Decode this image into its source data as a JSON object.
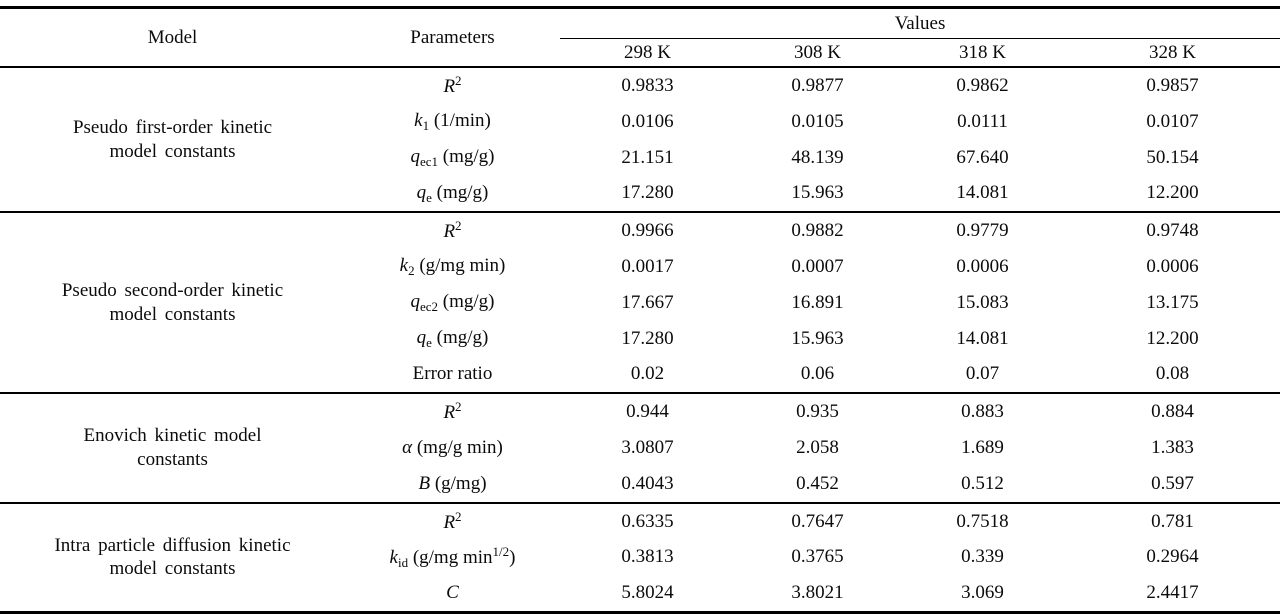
{
  "header": {
    "model": "Model",
    "parameters": "Parameters",
    "values": "Values",
    "temps": [
      "298 K",
      "308 K",
      "318 K",
      "328 K"
    ]
  },
  "sections": [
    {
      "model_lines": [
        "Pseudo first-order kinetic",
        "model constants"
      ],
      "rows": [
        {
          "param": [
            {
              "t": "R",
              "s": "i"
            },
            {
              "t": "2",
              "s": "sup"
            }
          ],
          "values": [
            "0.9833",
            "0.9877",
            "0.9862",
            "0.9857"
          ]
        },
        {
          "param": [
            {
              "t": "k",
              "s": "i"
            },
            {
              "t": "1",
              "s": "sub"
            },
            {
              "t": " (1/min)",
              "s": ""
            }
          ],
          "values": [
            "0.0106",
            "0.0105",
            "0.0111",
            "0.0107"
          ]
        },
        {
          "param": [
            {
              "t": "q",
              "s": "i"
            },
            {
              "t": "ec1",
              "s": "sub"
            },
            {
              "t": " (mg/g)",
              "s": ""
            }
          ],
          "values": [
            "21.151",
            "48.139",
            "67.640",
            "50.154"
          ]
        },
        {
          "param": [
            {
              "t": "q",
              "s": "i"
            },
            {
              "t": "e",
              "s": "sub"
            },
            {
              "t": " (mg/g)",
              "s": ""
            }
          ],
          "values": [
            "17.280",
            "15.963",
            "14.081",
            "12.200"
          ]
        }
      ]
    },
    {
      "model_lines": [
        "Pseudo second-order kinetic",
        "model constants"
      ],
      "rows": [
        {
          "param": [
            {
              "t": "R",
              "s": "i"
            },
            {
              "t": "2",
              "s": "sup"
            }
          ],
          "values": [
            "0.9966",
            "0.9882",
            "0.9779",
            "0.9748"
          ]
        },
        {
          "param": [
            {
              "t": "k",
              "s": "i"
            },
            {
              "t": "2",
              "s": "sub"
            },
            {
              "t": " (g/mg min)",
              "s": ""
            }
          ],
          "values": [
            "0.0017",
            "0.0007",
            "0.0006",
            "0.0006"
          ]
        },
        {
          "param": [
            {
              "t": "q",
              "s": "i"
            },
            {
              "t": "ec2",
              "s": "sub"
            },
            {
              "t": " (mg/g)",
              "s": ""
            }
          ],
          "values": [
            "17.667",
            "16.891",
            "15.083",
            "13.175"
          ]
        },
        {
          "param": [
            {
              "t": "q",
              "s": "i"
            },
            {
              "t": "e",
              "s": "sub"
            },
            {
              "t": " (mg/g)",
              "s": ""
            }
          ],
          "values": [
            "17.280",
            "15.963",
            "14.081",
            "12.200"
          ]
        },
        {
          "param": [
            {
              "t": "Error ratio",
              "s": ""
            }
          ],
          "values": [
            "0.02",
            "0.06",
            "0.07",
            "0.08"
          ]
        }
      ]
    },
    {
      "model_lines": [
        "Enovich kinetic model",
        "constants"
      ],
      "rows": [
        {
          "param": [
            {
              "t": "R",
              "s": "i"
            },
            {
              "t": "2",
              "s": "sup"
            }
          ],
          "values": [
            "0.944",
            "0.935",
            "0.883",
            "0.884"
          ]
        },
        {
          "param": [
            {
              "t": "α",
              "s": "i"
            },
            {
              "t": " (mg/g min)",
              "s": ""
            }
          ],
          "values": [
            "3.0807",
            "2.058",
            "1.689",
            "1.383"
          ]
        },
        {
          "param": [
            {
              "t": "B",
              "s": "i"
            },
            {
              "t": " (g/mg)",
              "s": ""
            }
          ],
          "values": [
            "0.4043",
            "0.452",
            "0.512",
            "0.597"
          ]
        }
      ]
    },
    {
      "model_lines": [
        "Intra particle diffusion kinetic",
        "model constants"
      ],
      "rows": [
        {
          "param": [
            {
              "t": "R",
              "s": "i"
            },
            {
              "t": "2",
              "s": "sup"
            }
          ],
          "values": [
            "0.6335",
            "0.7647",
            "0.7518",
            "0.781"
          ]
        },
        {
          "param": [
            {
              "t": "k",
              "s": "i"
            },
            {
              "t": "id",
              "s": "sub"
            },
            {
              "t": " (g/mg min",
              "s": ""
            },
            {
              "t": "1/2",
              "s": "sup"
            },
            {
              "t": ")",
              "s": ""
            }
          ],
          "values": [
            "0.3813",
            "0.3765",
            "0.339",
            "0.2964"
          ]
        },
        {
          "param": [
            {
              "t": "C",
              "s": "i"
            }
          ],
          "values": [
            "5.8024",
            "3.8021",
            "3.069",
            "2.4417"
          ]
        }
      ]
    }
  ]
}
